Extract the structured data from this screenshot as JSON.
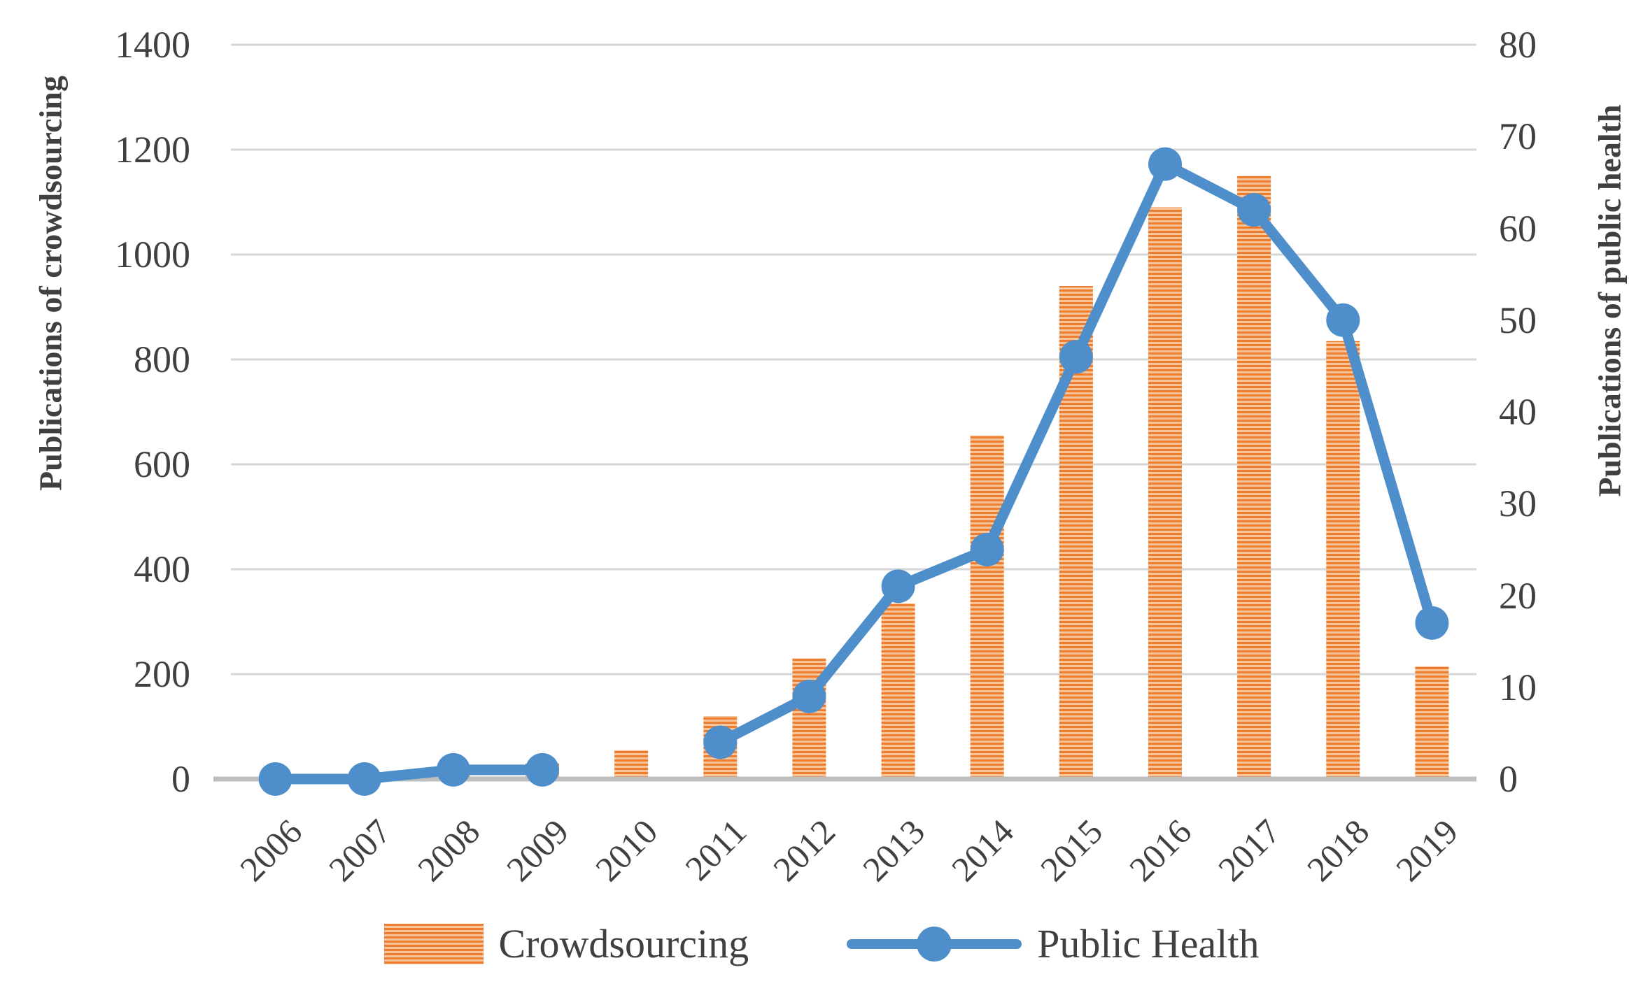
{
  "chart_data": {
    "type": "bar",
    "subtype": "combo-bar-line-dual-axis",
    "title": "",
    "categories": [
      "2006",
      "2007",
      "2008",
      "2009",
      "2010",
      "2011",
      "2012",
      "2013",
      "2014",
      "2015",
      "2016",
      "2017",
      "2018",
      "2019"
    ],
    "series": [
      {
        "name": "Crowdsourcing",
        "type": "bar",
        "axis": "left",
        "color": "#ED7D31",
        "pattern": "horizontal-stripes",
        "values": [
          0,
          0,
          10,
          30,
          55,
          120,
          230,
          335,
          655,
          940,
          1090,
          1150,
          835,
          215
        ]
      },
      {
        "name": "Public Health",
        "type": "line",
        "axis": "right",
        "color": "#4E8FCB",
        "marker": "circle",
        "values": [
          0,
          0,
          1,
          1,
          null,
          4,
          9,
          21,
          25,
          46,
          67,
          62,
          50,
          17
        ]
      }
    ],
    "left_axis": {
      "title": "Publications of crowdsourcing",
      "min": 0,
      "max": 1400,
      "step": 200,
      "tick_labels": [
        "1400",
        "1200",
        "1000",
        "800",
        "600",
        "400",
        "200",
        "0"
      ]
    },
    "right_axis": {
      "title": "Publications of public health",
      "min": 0,
      "max": 80,
      "step": 10,
      "tick_labels": [
        "80",
        "70",
        "60",
        "50",
        "40",
        "30",
        "20",
        "10",
        "0"
      ]
    },
    "xlabel": "",
    "grid": true,
    "legend_position": "bottom",
    "legend": [
      "Crowdsourcing",
      "Public Health"
    ]
  },
  "colors": {
    "bar_stripe_dark": "#ED7D31",
    "bar_stripe_light": "#F8C498",
    "line_blue": "#4E8FCB",
    "gridline": "#D6D6D6",
    "axis_line": "#BFBFBF",
    "text": "#404040",
    "background": "#FFFFFF"
  }
}
